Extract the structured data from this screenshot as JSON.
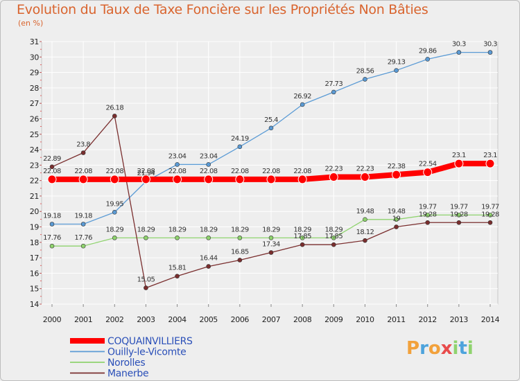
{
  "page": {
    "title": "Evolution du Taux de Taxe Foncière sur les Propriétés Non Bâties",
    "subtitle": "(en %)"
  },
  "chart_data": {
    "type": "line",
    "title": "Evolution du Taux de Taxe Foncière sur les Propriétés Non Bâties",
    "ylabel": "(en %)",
    "xlabel": "",
    "x": [
      "2000",
      "2001",
      "2002",
      "2003",
      "2004",
      "2005",
      "2006",
      "2007",
      "2008",
      "2009",
      "2010",
      "2011",
      "2012",
      "2013",
      "2014"
    ],
    "ylim": [
      14,
      31
    ],
    "yticks": [
      14,
      15,
      16,
      17,
      18,
      19,
      20,
      21,
      22,
      23,
      24,
      25,
      26,
      27,
      28,
      29,
      30,
      31
    ],
    "grid": true,
    "legend_position": "bottom-left",
    "series": [
      {
        "name": "COQUAINVILLIERS",
        "color": "#ff0000",
        "thick": true,
        "values": [
          22.08,
          22.08,
          22.08,
          22.08,
          22.08,
          22.08,
          22.08,
          22.08,
          22.08,
          22.23,
          22.23,
          22.38,
          22.54,
          23.1,
          23.1
        ],
        "labels": [
          "22.08",
          "22.08",
          "22.08",
          "22.08",
          "22.08",
          "22.08",
          "22.08",
          "22.08",
          "22.08",
          "22.23",
          "22.23",
          "22.38",
          "22.54",
          "23.1",
          "23.1"
        ]
      },
      {
        "name": "Ouilly-le-Vicomte",
        "color": "#5b9bd5",
        "thick": false,
        "values": [
          19.18,
          19.18,
          19.95,
          21.94,
          23.04,
          23.04,
          24.19,
          25.4,
          26.92,
          27.73,
          28.56,
          29.13,
          29.86,
          30.3,
          30.3
        ],
        "labels": [
          "19.18",
          "19.18",
          "19.95",
          "21.94",
          "23.04",
          "23.04",
          "24.19",
          "25.4",
          "26.92",
          "27.73",
          "28.56",
          "29.13",
          "29.86",
          "30.3",
          "30.3"
        ]
      },
      {
        "name": "Norolles",
        "color": "#8fd36e",
        "thick": false,
        "values": [
          17.76,
          17.76,
          18.29,
          18.29,
          18.29,
          18.29,
          18.29,
          18.29,
          18.29,
          18.29,
          19.48,
          19.48,
          19.77,
          19.77,
          19.77
        ],
        "labels": [
          "17.76",
          "17.76",
          "18.29",
          "18.29",
          "18.29",
          "18.29",
          "18.29",
          "18.29",
          "18.29",
          "18.29",
          "19.48",
          "19.48",
          "19.77",
          "19.77",
          "19.77"
        ]
      },
      {
        "name": "Manerbe",
        "color": "#7a2e2e",
        "thick": false,
        "values": [
          22.89,
          23.8,
          26.18,
          15.05,
          15.81,
          16.44,
          16.85,
          17.34,
          17.85,
          17.85,
          18.12,
          19,
          19.28,
          19.28,
          19.28
        ],
        "labels": [
          "22.89",
          "23.8",
          "26.18",
          "15.05",
          "15.81",
          "16.44",
          "16.85",
          "17.34",
          "17.85",
          "17.85",
          "18.12",
          "19",
          "19.28",
          "19.28",
          "19.28"
        ]
      }
    ]
  },
  "logo": {
    "letters": [
      "P",
      "r",
      "o",
      "x",
      "i",
      "t",
      "i"
    ],
    "colors": [
      "#f2a13b",
      "#4da3dc",
      "#f2a13b",
      "#e84b4b",
      "#8fd36e",
      "#4da3dc",
      "#8fd36e"
    ]
  }
}
